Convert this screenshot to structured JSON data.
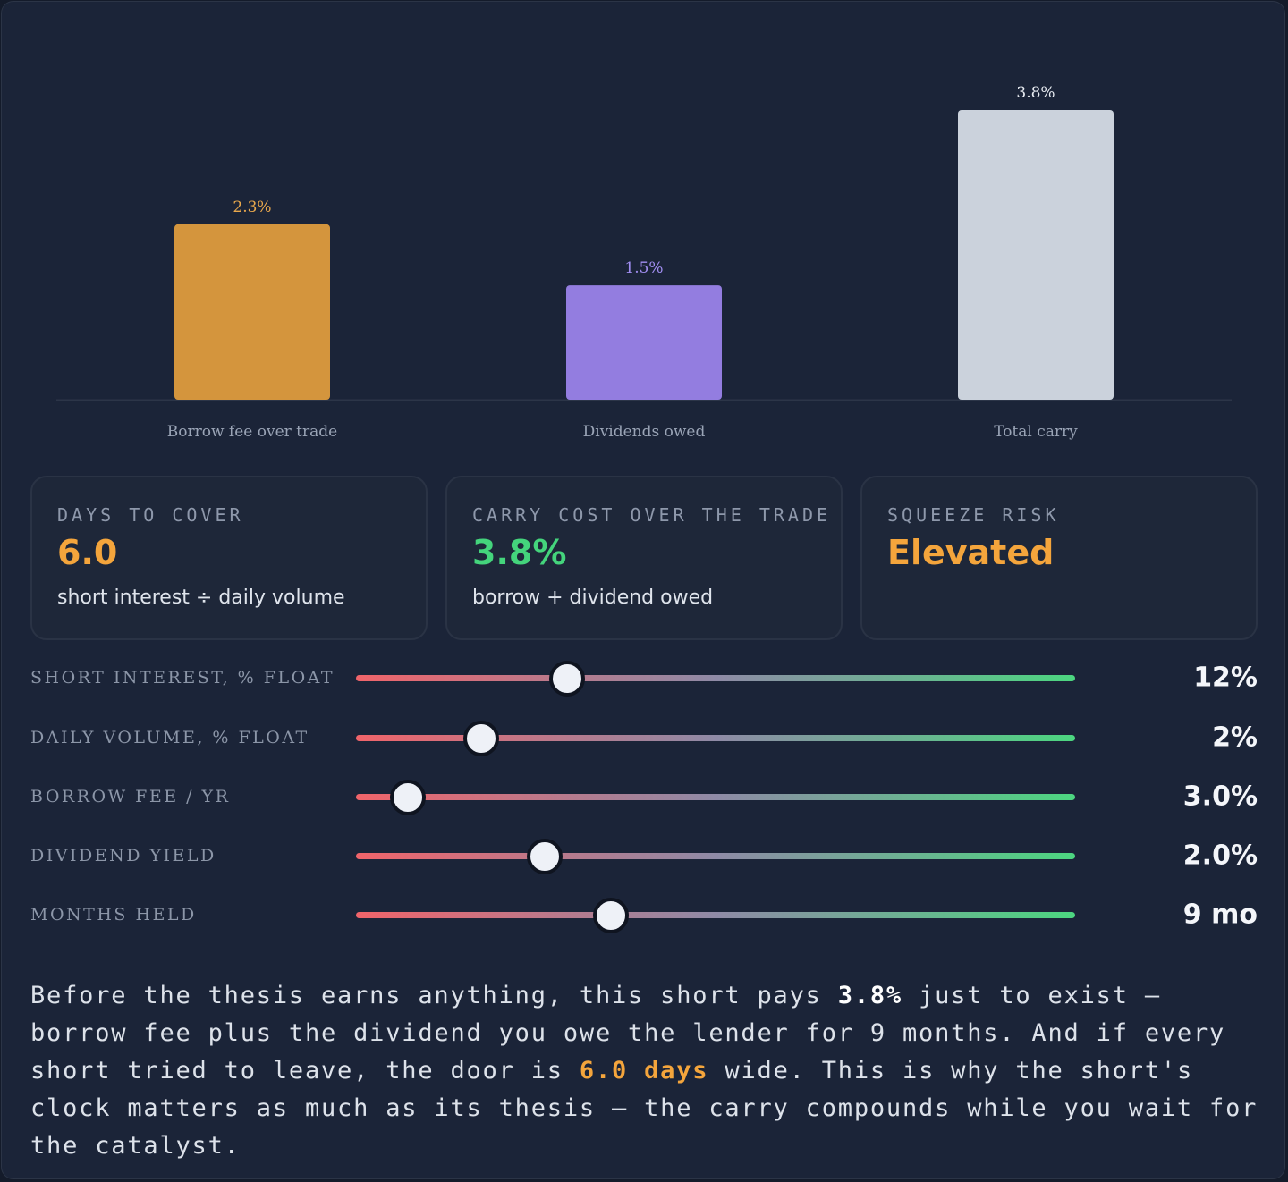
{
  "chart_data": {
    "type": "bar",
    "categories": [
      "Borrow fee over trade",
      "Dividends owed",
      "Total carry"
    ],
    "values": [
      2.3,
      1.5,
      3.8
    ],
    "value_labels": [
      "2.3%",
      "1.5%",
      "3.8%"
    ],
    "colors": [
      "#d4953d",
      "#937de0",
      "#cbd2dc"
    ],
    "label_colors": [
      "#e9a84c",
      "#a08df0",
      "#e8ecf2"
    ],
    "ylim": [
      0,
      3.8
    ],
    "grid": false,
    "legend": "none"
  },
  "cards": [
    {
      "title": "DAYS TO COVER",
      "value": "6.0",
      "value_color": "#f4a53c",
      "sub": "short interest ÷ daily volume"
    },
    {
      "title": "CARRY COST OVER THE TRADE",
      "value": "3.8%",
      "value_color": "#44d47c",
      "sub": "borrow + dividend owed"
    },
    {
      "title": "SQUEEZE RISK",
      "value": "Elevated",
      "value_color": "#f4a53c",
      "sub": ""
    }
  ],
  "sliders": [
    {
      "label": "SHORT INTEREST, % FLOAT",
      "value_text": "12%",
      "fraction": 0.293
    },
    {
      "label": "DAILY VOLUME, % FLOAT",
      "value_text": "2%",
      "fraction": 0.174
    },
    {
      "label": "BORROW FEE / YR",
      "value_text": "3.0%",
      "fraction": 0.072
    },
    {
      "label": "DIVIDEND YIELD",
      "value_text": "2.0%",
      "fraction": 0.262
    },
    {
      "label": "MONTHS HELD",
      "value_text": "9 mo",
      "fraction": 0.355
    }
  ],
  "narrative": {
    "part1": "Before the thesis earns anything, this short pays ",
    "carry": "3.8%",
    "part2": " just to exist — borrow fee plus the dividend you owe the lender for 9 months. And if every short tried to leave, the door is ",
    "days": "6.0 days",
    "part3": " wide. This is why the short's clock matters as much as its thesis — the carry compounds while you wait for the catalyst."
  }
}
